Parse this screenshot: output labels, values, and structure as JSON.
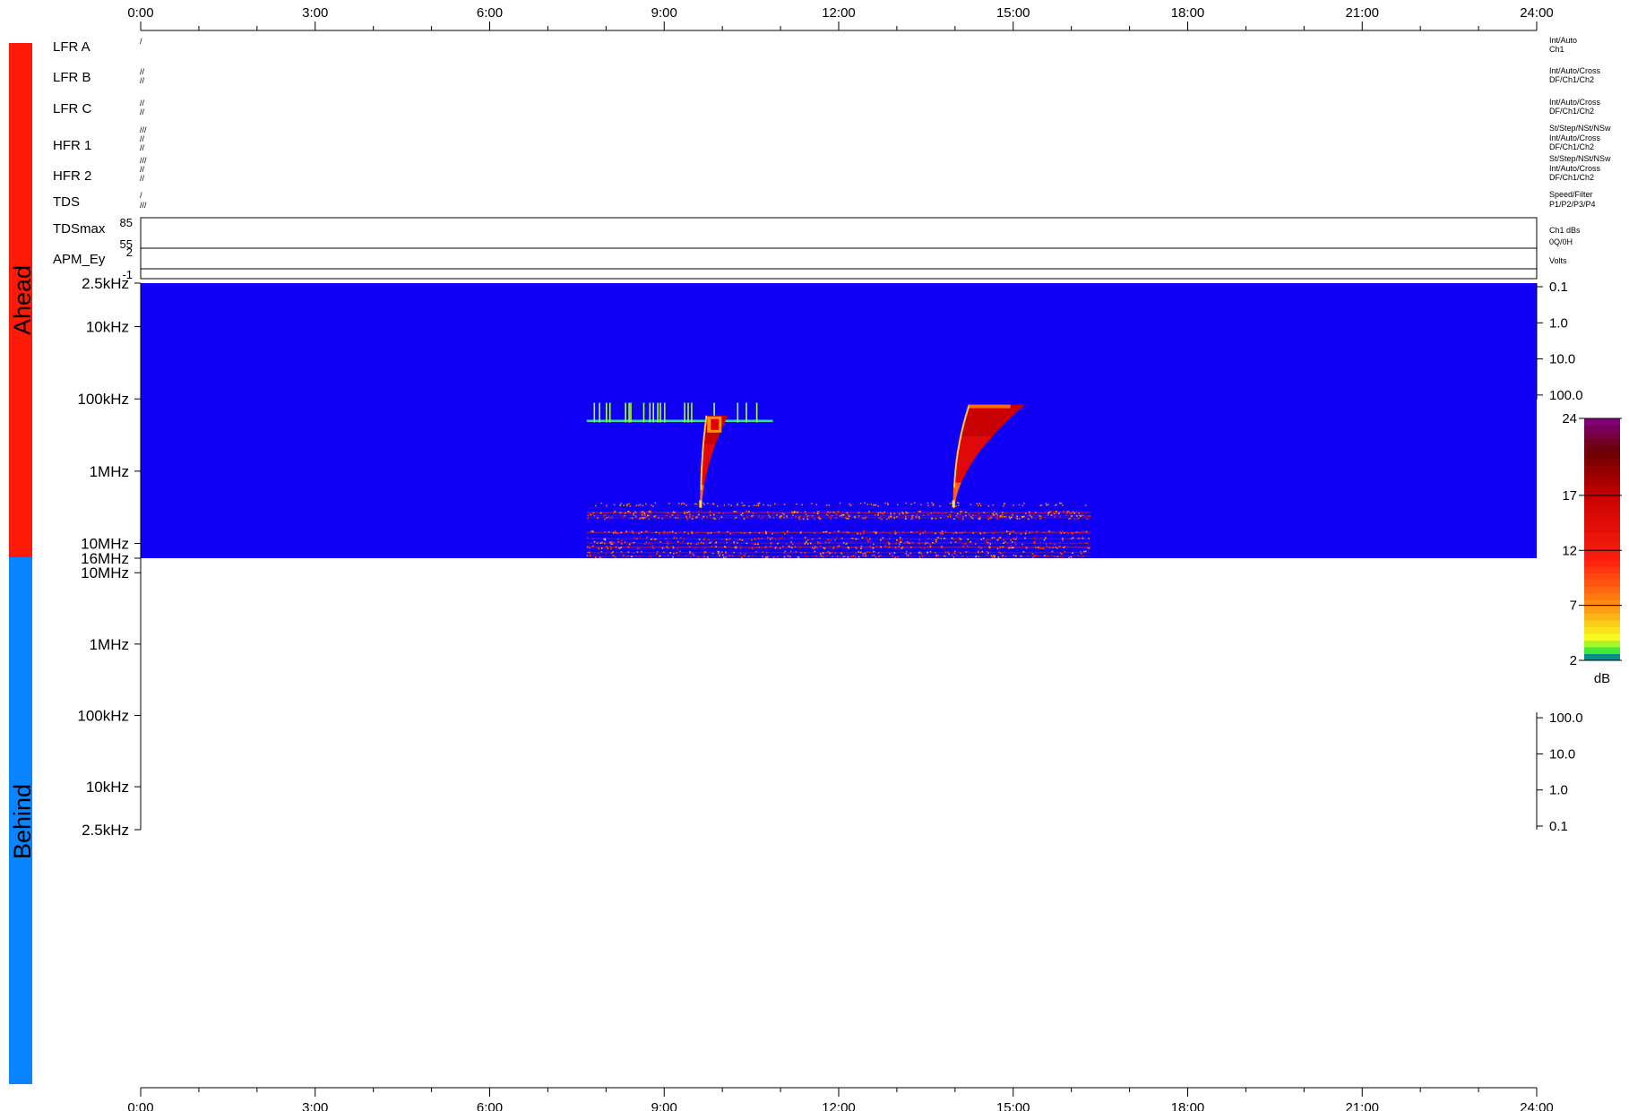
{
  "side_labels": {
    "ahead": {
      "text": "Ahead",
      "color": "#ff1a08"
    },
    "behind": {
      "text": "Behind",
      "color": "#0a84ff"
    }
  },
  "time_axis": {
    "ticks": [
      "0:00",
      "3:00",
      "6:00",
      "9:00",
      "12:00",
      "15:00",
      "18:00",
      "21:00",
      "24:00"
    ],
    "hours": [
      0,
      3,
      6,
      9,
      12,
      15,
      18,
      21,
      24
    ],
    "range_hours": [
      0,
      24
    ]
  },
  "instrument_rows": [
    {
      "name": "LFR A",
      "marks": [
        "/"
      ],
      "modes": [
        "Int/Auto",
        "Ch1"
      ]
    },
    {
      "name": "LFR B",
      "marks": [
        "//",
        "//"
      ],
      "modes": [
        "Int/Auto/Cross",
        "DF/Ch1/Ch2"
      ]
    },
    {
      "name": "LFR C",
      "marks": [
        "//",
        "//"
      ],
      "modes": [
        "Int/Auto/Cross",
        "DF/Ch1/Ch2"
      ]
    },
    {
      "name": "HFR 1",
      "marks": [
        "///",
        "//",
        "//"
      ],
      "modes": [
        "St/Step/NSt/NSw",
        "Int/Auto/Cross",
        "DF/Ch1/Ch2"
      ]
    },
    {
      "name": "HFR 2",
      "marks": [
        "///",
        "//",
        "//"
      ],
      "modes": [
        "St/Step/NSt/NSw",
        "Int/Auto/Cross",
        "DF/Ch1/Ch2"
      ]
    },
    {
      "name": "TDS",
      "marks": [
        "/",
        "///"
      ],
      "modes": [
        "Speed/Filter",
        "P1/P2/P3/P4"
      ]
    }
  ],
  "tdsmax": {
    "name": "TDSmax",
    "ticks": [
      "85",
      "55"
    ],
    "units": [
      "Ch1 dBs",
      "0Q/0H"
    ]
  },
  "apm": {
    "name": "APM_Ey",
    "ticks": [
      "2",
      "-1"
    ],
    "units": [
      "Volts"
    ]
  },
  "chart_data": {
    "type": "heatmap",
    "panels": [
      {
        "name": "Ahead",
        "y_scale": "log",
        "y_range": [
          "2.5kHz",
          "16MHz"
        ],
        "y_ticks_left": [
          "2.5kHz",
          "10kHz",
          "100kHz",
          "1MHz",
          "10MHz",
          "16MHz"
        ],
        "y_ticks_right": [
          "0.1",
          "1.0",
          "10.0",
          "100.0"
        ],
        "background_color": "#1000f5",
        "features": [
          {
            "kind": "type III burst",
            "start_time": "9:37",
            "end_time": "10:20",
            "freq_high": "0.17 MHz",
            "freq_low": "3 MHz"
          },
          {
            "kind": "type III burst",
            "start_time": "13:58",
            "end_time": "15:00",
            "freq_high": "0.12 MHz",
            "freq_low": "3 MHz"
          },
          {
            "kind": "narrowband interference",
            "start_time": "7:40",
            "end_time": "11:40",
            "freq": "0.2 MHz"
          },
          {
            "kind": "broadband noise",
            "start_time": "7:40",
            "end_time": "16:20",
            "freq_range": [
              "3 MHz",
              "16 MHz"
            ]
          }
        ]
      },
      {
        "name": "Behind",
        "y_scale": "log",
        "y_range": [
          "16MHz",
          "2.5kHz"
        ],
        "y_ticks_left": [
          "16MHz",
          "10MHz",
          "1MHz",
          "100kHz",
          "10kHz",
          "2.5kHz"
        ],
        "y_ticks_right": [
          "100.0",
          "10.0",
          "1.0",
          "0.1"
        ],
        "data": "none"
      }
    ],
    "colorbar": {
      "label": "dB",
      "range": [
        2,
        24
      ],
      "ticks": [
        "24",
        "17",
        "12",
        "7",
        "2"
      ],
      "colors": [
        "#1010f5",
        "#00e040",
        "#f6ff20",
        "#ff9010",
        "#ff2010",
        "#c80000",
        "#6a0000",
        "#800080"
      ]
    }
  }
}
